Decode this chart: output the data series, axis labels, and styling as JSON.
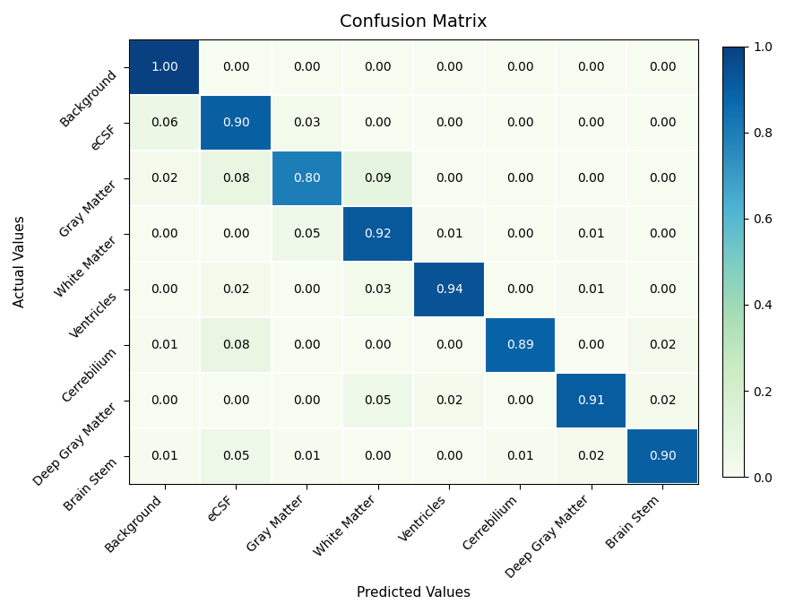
{
  "title": "Confusion Matrix",
  "xlabel": "Predicted Values",
  "ylabel": "Actual Values",
  "labels": [
    "Background",
    "eCSF",
    "Gray Matter",
    "White Matter",
    "Ventricles",
    "Cerrebilium",
    "Deep Gray Matter",
    "Brain Stem"
  ],
  "matrix": [
    [
      1.0,
      0.0,
      0.0,
      0.0,
      0.0,
      0.0,
      0.0,
      0.0
    ],
    [
      0.06,
      0.9,
      0.03,
      0.0,
      0.0,
      0.0,
      0.0,
      0.0
    ],
    [
      0.02,
      0.08,
      0.8,
      0.09,
      0.0,
      0.0,
      0.0,
      0.0
    ],
    [
      0.0,
      0.0,
      0.05,
      0.92,
      0.01,
      0.0,
      0.01,
      0.0
    ],
    [
      0.0,
      0.02,
      0.0,
      0.03,
      0.94,
      0.0,
      0.01,
      0.0
    ],
    [
      0.01,
      0.08,
      0.0,
      0.0,
      0.0,
      0.89,
      0.0,
      0.02
    ],
    [
      0.0,
      0.0,
      0.0,
      0.05,
      0.02,
      0.0,
      0.91,
      0.02
    ],
    [
      0.01,
      0.05,
      0.01,
      0.0,
      0.0,
      0.01,
      0.02,
      0.9
    ]
  ],
  "cmap": "GnBu",
  "vmin": 0.0,
  "vmax": 1.0,
  "figsize": [
    8.77,
    6.84
  ],
  "dpi": 100,
  "title_fontsize": 14,
  "label_fontsize": 11,
  "tick_fontsize": 10,
  "cell_fontsize": 10,
  "ytick_rotation": 45,
  "xtick_rotation": 45
}
